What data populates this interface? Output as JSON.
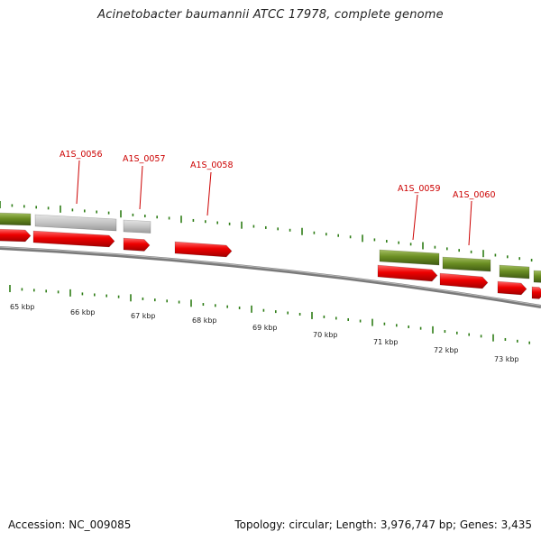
{
  "title": "Acinetobacter baumannii ATCC 17978, complete genome",
  "footer": {
    "accession_label": "Accession:",
    "accession": "NC_009085",
    "topology": "Topology: circular; Length: 3,976,747 bp; Genes: 3,435"
  },
  "colors": {
    "backbone": "#8c8c8c",
    "cds": "#e60000",
    "gene": "#6b8e23",
    "pseudo_gene": "#bfbfbf",
    "label": "#cc0000",
    "tick": "#2e7d16"
  },
  "gene_labels": [
    "A1S_0056",
    "A1S_0057",
    "A1S_0058",
    "A1S_0059",
    "A1S_0060"
  ],
  "scale_labels": [
    "65 kbp",
    "66 kbp",
    "67 kbp",
    "68 kbp",
    "69 kbp",
    "70 kbp",
    "71 kbp",
    "72 kbp",
    "73 kbp"
  ]
}
